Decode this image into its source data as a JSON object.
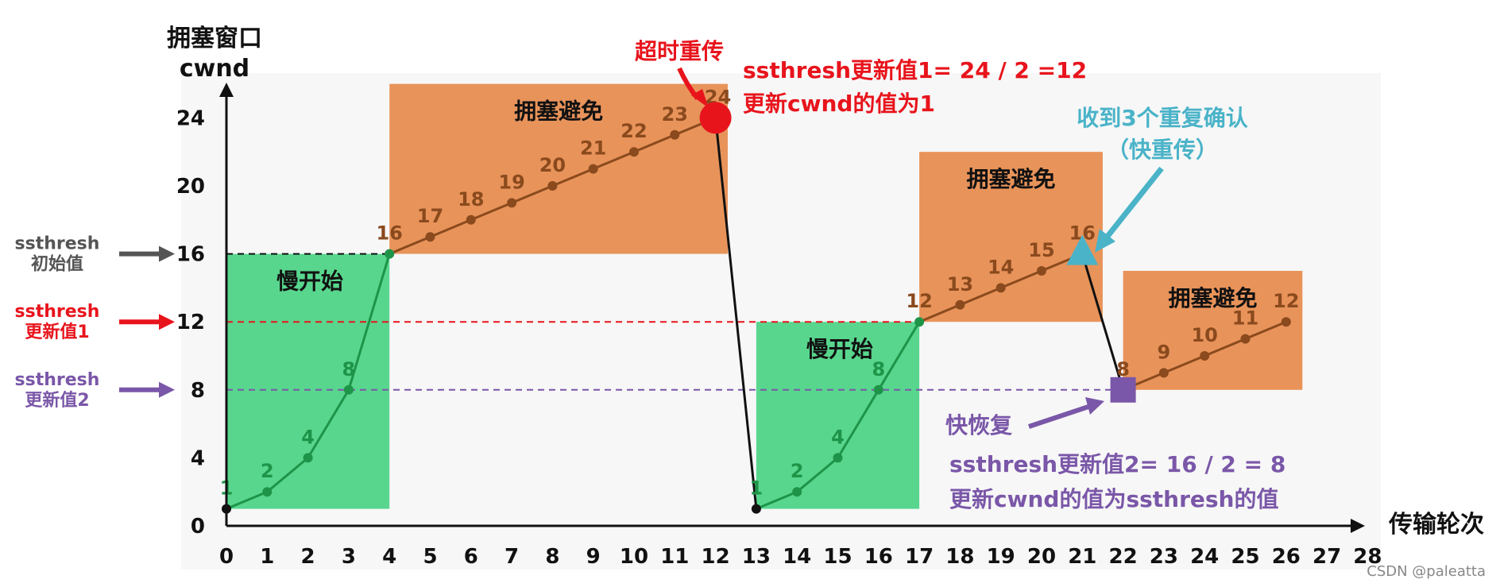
{
  "colors": {
    "slow_start": "#58d68d",
    "congestion_avoid": "#e8935a",
    "line_green": "#1e9448",
    "line_brown": "#8a4a1d",
    "red": "#e8141c",
    "purple": "#7a57a8",
    "teal": "#4ab3c8",
    "gray": "#555555"
  },
  "chart_data": {
    "type": "line",
    "title_line1": "拥塞窗口",
    "title_line2": "cwnd",
    "xlabel": "传输轮次",
    "xlim": [
      0,
      28
    ],
    "ylim": [
      0,
      24
    ],
    "x_ticks": [
      0,
      1,
      2,
      3,
      4,
      5,
      6,
      7,
      8,
      9,
      10,
      11,
      12,
      13,
      14,
      15,
      16,
      17,
      18,
      19,
      20,
      21,
      22,
      23,
      24,
      25,
      26,
      27,
      28
    ],
    "y_ticks": [
      0,
      4,
      8,
      12,
      16,
      20,
      24
    ],
    "segments": [
      {
        "phase": "slow_start",
        "points": [
          [
            0,
            1
          ],
          [
            1,
            2
          ],
          [
            2,
            4
          ],
          [
            3,
            8
          ],
          [
            4,
            16
          ]
        ]
      },
      {
        "phase": "congestion_avoid",
        "points": [
          [
            4,
            16
          ],
          [
            5,
            17
          ],
          [
            6,
            18
          ],
          [
            7,
            19
          ],
          [
            8,
            20
          ],
          [
            9,
            21
          ],
          [
            10,
            22
          ],
          [
            11,
            23
          ],
          [
            12,
            24
          ]
        ]
      },
      {
        "phase": "drop",
        "points": [
          [
            12,
            24
          ],
          [
            13,
            1
          ]
        ]
      },
      {
        "phase": "slow_start",
        "points": [
          [
            13,
            1
          ],
          [
            14,
            2
          ],
          [
            15,
            4
          ],
          [
            16,
            8
          ],
          [
            17,
            12
          ]
        ]
      },
      {
        "phase": "congestion_avoid",
        "points": [
          [
            17,
            12
          ],
          [
            18,
            13
          ],
          [
            19,
            14
          ],
          [
            20,
            15
          ],
          [
            21,
            16
          ]
        ]
      },
      {
        "phase": "drop",
        "points": [
          [
            21,
            16
          ],
          [
            22,
            8
          ]
        ]
      },
      {
        "phase": "congestion_avoid",
        "points": [
          [
            22,
            8
          ],
          [
            23,
            9
          ],
          [
            24,
            10
          ],
          [
            25,
            11
          ],
          [
            26,
            12
          ]
        ]
      }
    ],
    "point_labels": [
      {
        "x": 0,
        "y": 1,
        "text": "1"
      },
      {
        "x": 1,
        "y": 2,
        "text": "2"
      },
      {
        "x": 2,
        "y": 4,
        "text": "4"
      },
      {
        "x": 3,
        "y": 8,
        "text": "8"
      },
      {
        "x": 4,
        "y": 16,
        "text": "16"
      },
      {
        "x": 5,
        "y": 17,
        "text": "17"
      },
      {
        "x": 6,
        "y": 18,
        "text": "18"
      },
      {
        "x": 7,
        "y": 19,
        "text": "19"
      },
      {
        "x": 8,
        "y": 20,
        "text": "20"
      },
      {
        "x": 9,
        "y": 21,
        "text": "21"
      },
      {
        "x": 10,
        "y": 22,
        "text": "22"
      },
      {
        "x": 11,
        "y": 23,
        "text": "23"
      },
      {
        "x": 12,
        "y": 24,
        "text": "24"
      },
      {
        "x": 13,
        "y": 1,
        "text": "1"
      },
      {
        "x": 14,
        "y": 2,
        "text": "2"
      },
      {
        "x": 15,
        "y": 4,
        "text": "4"
      },
      {
        "x": 16,
        "y": 8,
        "text": "8"
      },
      {
        "x": 17,
        "y": 12,
        "text": "12"
      },
      {
        "x": 18,
        "y": 13,
        "text": "13"
      },
      {
        "x": 19,
        "y": 14,
        "text": "14"
      },
      {
        "x": 20,
        "y": 15,
        "text": "15"
      },
      {
        "x": 21,
        "y": 16,
        "text": "16"
      },
      {
        "x": 22,
        "y": 8,
        "text": "8"
      },
      {
        "x": 23,
        "y": 9,
        "text": "9"
      },
      {
        "x": 24,
        "y": 10,
        "text": "10"
      },
      {
        "x": 25,
        "y": 11,
        "text": "11"
      },
      {
        "x": 26,
        "y": 12,
        "text": "12"
      }
    ],
    "regions": [
      {
        "phase": "slow_start",
        "x0": 0,
        "x1": 4,
        "y0": 1,
        "y1": 16,
        "label": "慢开始"
      },
      {
        "phase": "congestion_avoid",
        "x0": 4,
        "x1": 12.3,
        "y0": 16,
        "y1": 26,
        "label": "拥塞避免"
      },
      {
        "phase": "slow_start",
        "x0": 13,
        "x1": 17,
        "y0": 1,
        "y1": 12,
        "label": "慢开始"
      },
      {
        "phase": "congestion_avoid",
        "x0": 17,
        "x1": 21.5,
        "y0": 12,
        "y1": 22,
        "label": "拥塞避免"
      },
      {
        "phase": "congestion_avoid",
        "x0": 22,
        "x1": 26.4,
        "y0": 8,
        "y1": 15,
        "label": "拥塞避免"
      }
    ],
    "thresholds": [
      {
        "y": 16,
        "x1": 4,
        "color": "black",
        "line1": "ssthresh",
        "line2": "初始值",
        "arrow_color": "gray"
      },
      {
        "y": 12,
        "x1": 17,
        "color": "red",
        "line1": "ssthresh",
        "line2": "更新值1",
        "arrow_color": "red"
      },
      {
        "y": 8,
        "x1": 22,
        "color": "purple",
        "line1": "ssthresh",
        "line2": "更新值2",
        "arrow_color": "purple"
      }
    ],
    "markers": [
      {
        "x": 12,
        "y": 24,
        "shape": "circle",
        "color": "red"
      },
      {
        "x": 21,
        "y": 16,
        "shape": "triangle",
        "color": "teal"
      },
      {
        "x": 22,
        "y": 8,
        "shape": "square",
        "color": "purple"
      }
    ]
  },
  "annotations": {
    "timeout_title": "超时重传",
    "timeout_line1": "ssthresh更新值1= 24 / 2 =12",
    "timeout_line2": "更新cwnd的值为1",
    "triple_ack_line1": "收到3个重复确认",
    "triple_ack_line2": "（快重传）",
    "fast_recovery_title": "快恢复",
    "fast_recovery_line1": "ssthresh更新值2= 16 / 2 = 8",
    "fast_recovery_line2": "更新cwnd的值为ssthresh的值"
  },
  "watermark": "CSDN @paleatta"
}
